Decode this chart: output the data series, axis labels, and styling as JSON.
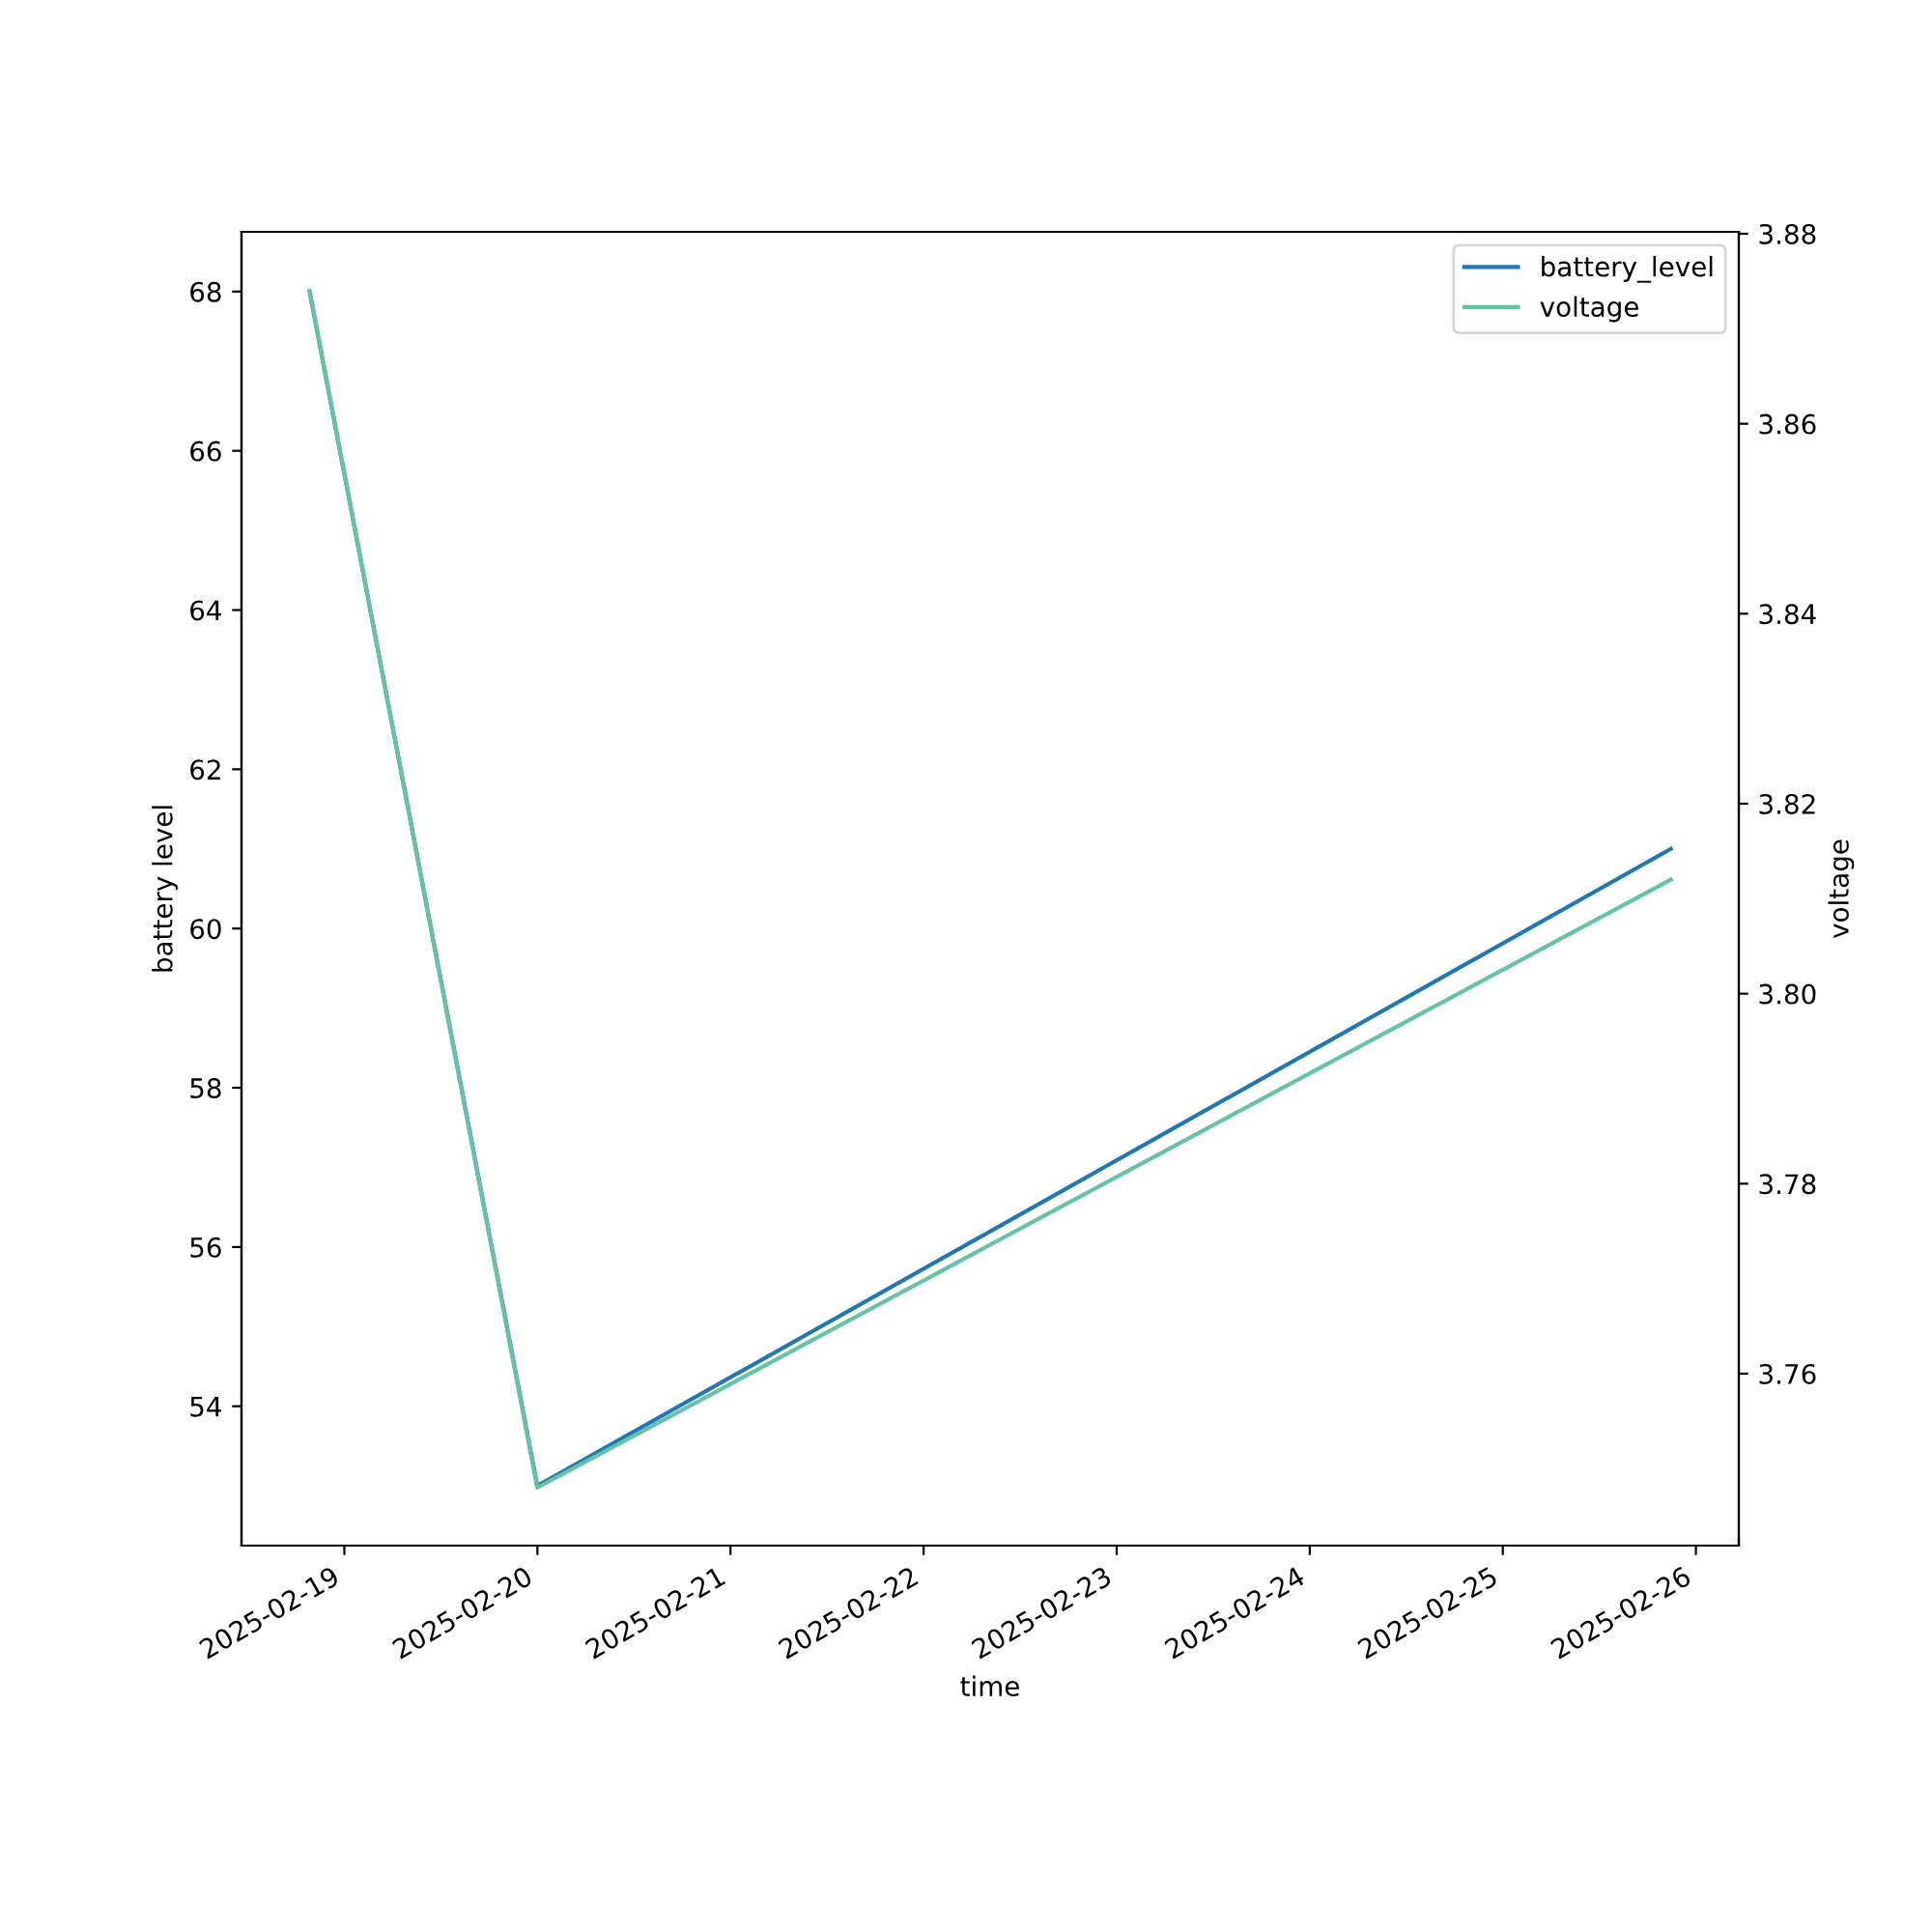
{
  "chart_data": {
    "type": "line",
    "xlabel": "time",
    "ylabel": "battery level",
    "y2label": "voltage",
    "x": [
      "2025-02-18T19:41",
      "2025-02-19T23:59",
      "2025-02-25T20:53"
    ],
    "series": [
      {
        "name": "battery_level",
        "color": "#1f77b4",
        "values": [
          68,
          53,
          61
        ]
      },
      {
        "name": "voltage",
        "color": "#66c2a5",
        "values": [
          3.874,
          3.748,
          3.812
        ],
        "axis": "y2"
      }
    ],
    "xlim": [
      "2025-02-18T11:13",
      "2025-02-26T05:20"
    ],
    "xticks": [
      {
        "value": "2025-02-19",
        "label": "2025-02-19"
      },
      {
        "value": "2025-02-20",
        "label": "2025-02-20"
      },
      {
        "value": "2025-02-21",
        "label": "2025-02-21"
      },
      {
        "value": "2025-02-22",
        "label": "2025-02-22"
      },
      {
        "value": "2025-02-23",
        "label": "2025-02-23"
      },
      {
        "value": "2025-02-24",
        "label": "2025-02-24"
      },
      {
        "value": "2025-02-25",
        "label": "2025-02-25"
      },
      {
        "value": "2025-02-26",
        "label": "2025-02-26"
      }
    ],
    "ylim": [
      52.25,
      68.75
    ],
    "yticks": [
      54,
      56,
      58,
      60,
      62,
      64,
      66,
      68
    ],
    "y2lim": [
      3.7419,
      3.8802
    ],
    "y2ticks": [
      3.76,
      3.78,
      {
        "value": 3.8,
        "label": "3.80"
      },
      3.82,
      3.84,
      3.86,
      3.88
    ],
    "legend": "top right",
    "grid": false,
    "marker": "none",
    "line_style": "solid"
  }
}
